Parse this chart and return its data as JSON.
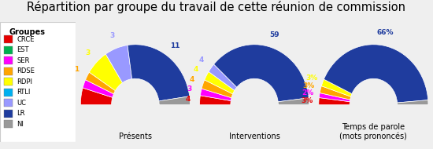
{
  "title": "Répartition par groupe du travail de cette réunion de commission",
  "groups": [
    "CRCE",
    "EST",
    "SER",
    "RDSE",
    "RDPI",
    "RTLI",
    "UC",
    "LR",
    "NI"
  ],
  "colors": [
    "#e60000",
    "#00b050",
    "#ff00ff",
    "#ffa500",
    "#ffff00",
    "#00b0f0",
    "#9999ff",
    "#1f3c9e",
    "#999999"
  ],
  "presents": [
    2,
    0,
    1,
    1,
    3,
    0,
    3,
    11,
    1
  ],
  "interventions": [
    4,
    0,
    3,
    4,
    4,
    0,
    4,
    59,
    3
  ],
  "temps_parole_pct": [
    3,
    0,
    2,
    3,
    3,
    0,
    0,
    66,
    2
  ],
  "legend_title": "Groupes",
  "chart_labels": [
    "Présents",
    "Interventions",
    "Temps de parole\n(mots prononcés)"
  ],
  "background_color": "#efefef",
  "label_fontsize": 6.5,
  "title_fontsize": 10.5
}
